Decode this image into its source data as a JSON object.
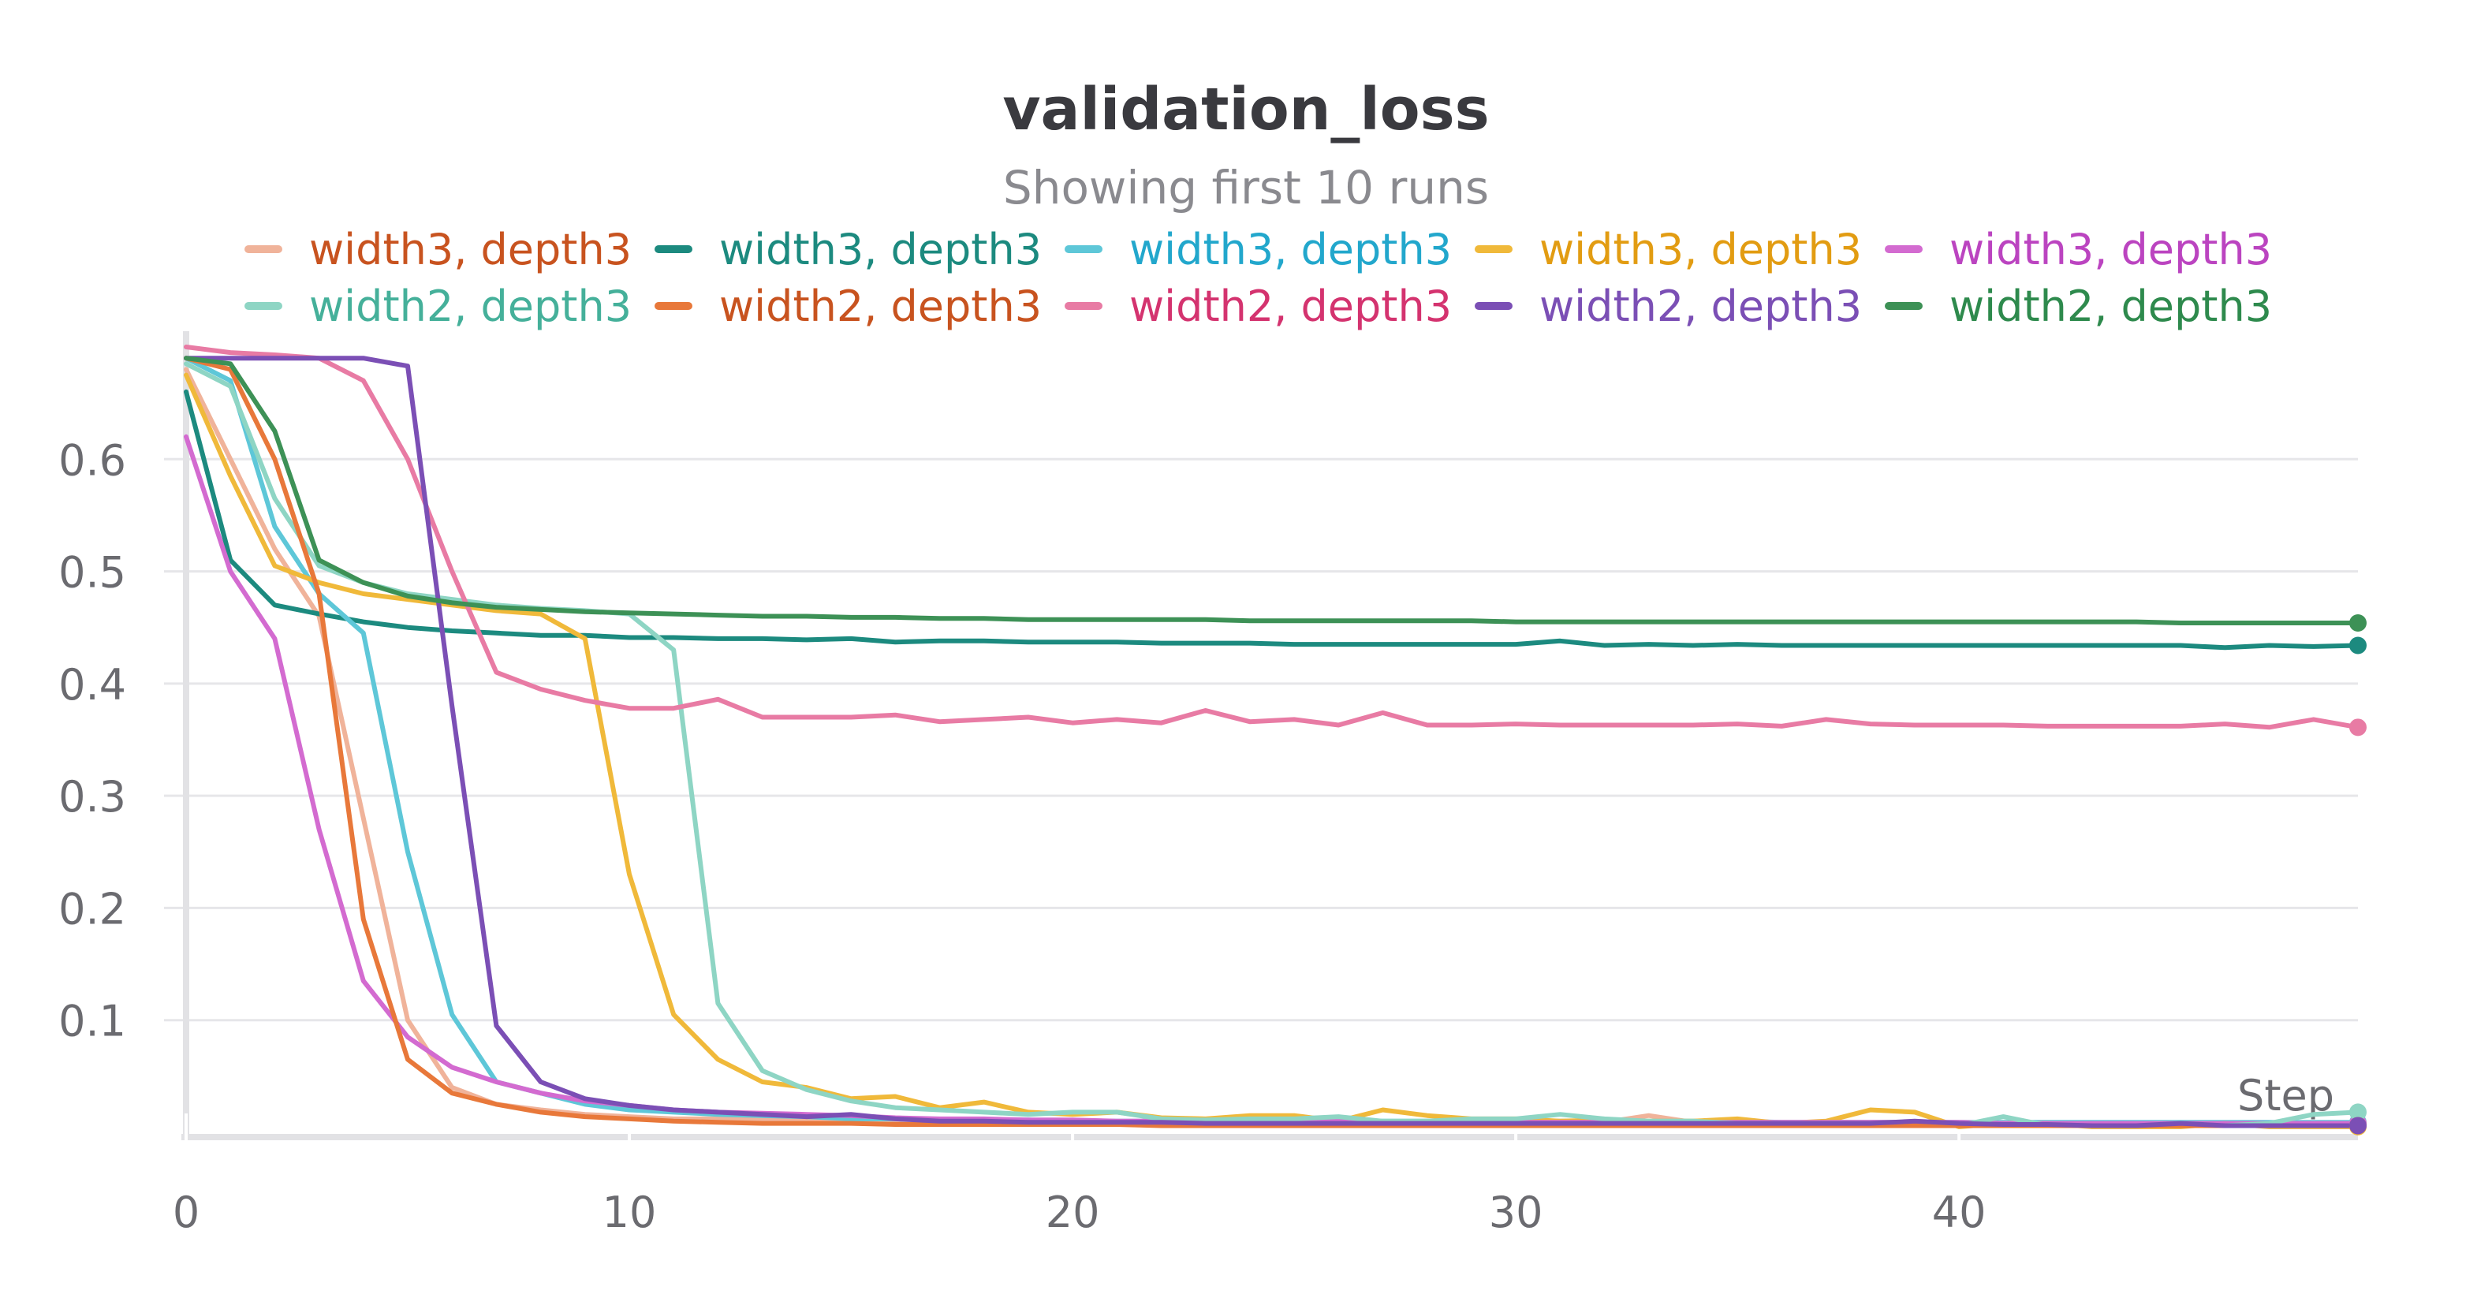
{
  "chart_data": {
    "type": "line",
    "title": "validation_loss",
    "subtitle": "Showing first 10 runs",
    "xlabel": "Step",
    "ylabel": "",
    "xlim": [
      0,
      49
    ],
    "ylim": [
      0,
      0.7
    ],
    "x_ticks": [
      0,
      10,
      20,
      30,
      40
    ],
    "y_ticks": [
      0.1,
      0.2,
      0.3,
      0.4,
      0.5,
      0.6
    ],
    "grid": true,
    "legend_position": "top",
    "x": [
      0,
      1,
      2,
      3,
      4,
      5,
      6,
      7,
      8,
      9,
      10,
      11,
      12,
      13,
      14,
      15,
      16,
      17,
      18,
      19,
      20,
      21,
      22,
      23,
      24,
      25,
      26,
      27,
      28,
      29,
      30,
      31,
      32,
      33,
      34,
      35,
      36,
      37,
      38,
      39,
      40,
      41,
      42,
      43,
      44,
      45,
      46,
      47,
      48,
      49
    ],
    "series": [
      {
        "name": "width3, depth3",
        "color": "#f0b39a",
        "label_color": "#c8531f",
        "values": [
          0.68,
          0.6,
          0.52,
          0.46,
          0.28,
          0.1,
          0.04,
          0.025,
          0.02,
          0.016,
          0.014,
          0.012,
          0.012,
          0.011,
          0.011,
          0.01,
          0.01,
          0.01,
          0.01,
          0.01,
          0.01,
          0.009,
          0.009,
          0.009,
          0.009,
          0.012,
          0.009,
          0.009,
          0.009,
          0.009,
          0.009,
          0.009,
          0.009,
          0.015,
          0.009,
          0.009,
          0.009,
          0.009,
          0.009,
          0.009,
          0.008,
          0.008,
          0.008,
          0.008,
          0.008,
          0.008,
          0.008,
          0.008,
          0.008,
          0.008
        ]
      },
      {
        "name": "width3, depth3",
        "color": "#1c8a7f",
        "label_color": "#1c8a7f",
        "values": [
          0.66,
          0.51,
          0.47,
          0.462,
          0.455,
          0.45,
          0.447,
          0.445,
          0.443,
          0.443,
          0.441,
          0.441,
          0.44,
          0.44,
          0.439,
          0.44,
          0.437,
          0.438,
          0.438,
          0.437,
          0.437,
          0.437,
          0.436,
          0.436,
          0.436,
          0.435,
          0.435,
          0.435,
          0.435,
          0.435,
          0.435,
          0.438,
          0.434,
          0.435,
          0.434,
          0.435,
          0.434,
          0.434,
          0.434,
          0.434,
          0.434,
          0.434,
          0.434,
          0.434,
          0.434,
          0.434,
          0.432,
          0.434,
          0.433,
          0.434
        ]
      },
      {
        "name": "width3, depth3",
        "color": "#5ec7d8",
        "label_color": "#22a7cc",
        "values": [
          0.69,
          0.67,
          0.54,
          0.48,
          0.445,
          0.25,
          0.105,
          0.045,
          0.035,
          0.025,
          0.02,
          0.018,
          0.016,
          0.015,
          0.014,
          0.012,
          0.012,
          0.011,
          0.011,
          0.011,
          0.01,
          0.01,
          0.01,
          0.01,
          0.01,
          0.01,
          0.01,
          0.01,
          0.01,
          0.01,
          0.01,
          0.01,
          0.01,
          0.01,
          0.01,
          0.01,
          0.009,
          0.009,
          0.009,
          0.009,
          0.009,
          0.009,
          0.009,
          0.009,
          0.009,
          0.009,
          0.009,
          0.009,
          0.009,
          0.009
        ]
      },
      {
        "name": "width3, depth3",
        "color": "#f0b93a",
        "label_color": "#e29c12",
        "values": [
          0.675,
          0.585,
          0.505,
          0.49,
          0.48,
          0.475,
          0.47,
          0.465,
          0.462,
          0.44,
          0.23,
          0.105,
          0.065,
          0.045,
          0.04,
          0.03,
          0.032,
          0.022,
          0.027,
          0.018,
          0.016,
          0.018,
          0.013,
          0.012,
          0.015,
          0.015,
          0.01,
          0.02,
          0.015,
          0.012,
          0.012,
          0.01,
          0.011,
          0.01,
          0.01,
          0.012,
          0.008,
          0.01,
          0.02,
          0.018,
          0.005,
          0.008,
          0.008,
          0.005,
          0.005,
          0.005,
          0.008,
          0.005,
          0.005,
          0.005
        ]
      },
      {
        "name": "width3, depth3",
        "color": "#d36bd0",
        "label_color": "#bb44c0",
        "values": [
          0.62,
          0.5,
          0.44,
          0.27,
          0.135,
          0.085,
          0.058,
          0.045,
          0.035,
          0.028,
          0.024,
          0.02,
          0.018,
          0.017,
          0.016,
          0.015,
          0.013,
          0.012,
          0.012,
          0.011,
          0.011,
          0.01,
          0.01,
          0.01,
          0.01,
          0.01,
          0.01,
          0.009,
          0.009,
          0.009,
          0.009,
          0.009,
          0.009,
          0.009,
          0.009,
          0.009,
          0.009,
          0.009,
          0.009,
          0.009,
          0.009,
          0.008,
          0.008,
          0.008,
          0.008,
          0.008,
          0.008,
          0.008,
          0.008,
          0.008
        ]
      },
      {
        "name": "width2, depth3",
        "color": "#8ed5c4",
        "label_color": "#45b09a",
        "values": [
          0.685,
          0.665,
          0.565,
          0.505,
          0.49,
          0.48,
          0.475,
          0.47,
          0.467,
          0.465,
          0.462,
          0.43,
          0.115,
          0.055,
          0.038,
          0.028,
          0.022,
          0.02,
          0.018,
          0.016,
          0.018,
          0.018,
          0.012,
          0.011,
          0.012,
          0.012,
          0.014,
          0.01,
          0.01,
          0.012,
          0.012,
          0.016,
          0.012,
          0.01,
          0.01,
          0.008,
          0.008,
          0.008,
          0.008,
          0.006,
          0.006,
          0.014,
          0.006,
          0.006,
          0.006,
          0.006,
          0.006,
          0.008,
          0.016,
          0.018
        ]
      },
      {
        "name": "width2, depth3",
        "color": "#e8783a",
        "label_color": "#c8531f",
        "values": [
          0.69,
          0.68,
          0.6,
          0.48,
          0.19,
          0.065,
          0.035,
          0.025,
          0.018,
          0.014,
          0.012,
          0.01,
          0.009,
          0.008,
          0.008,
          0.008,
          0.007,
          0.007,
          0.007,
          0.007,
          0.007,
          0.007,
          0.006,
          0.006,
          0.006,
          0.006,
          0.006,
          0.006,
          0.006,
          0.006,
          0.006,
          0.006,
          0.006,
          0.006,
          0.006,
          0.006,
          0.006,
          0.006,
          0.006,
          0.006,
          0.006,
          0.006,
          0.006,
          0.006,
          0.006,
          0.006,
          0.006,
          0.006,
          0.006,
          0.006
        ]
      },
      {
        "name": "width2, depth3",
        "color": "#e87ba4",
        "label_color": "#d4336f",
        "values": [
          0.7,
          0.695,
          0.693,
          0.69,
          0.67,
          0.6,
          0.5,
          0.41,
          0.395,
          0.385,
          0.378,
          0.378,
          0.386,
          0.37,
          0.37,
          0.37,
          0.372,
          0.366,
          0.368,
          0.37,
          0.365,
          0.368,
          0.365,
          0.376,
          0.366,
          0.368,
          0.363,
          0.374,
          0.363,
          0.363,
          0.364,
          0.363,
          0.363,
          0.363,
          0.363,
          0.364,
          0.362,
          0.368,
          0.364,
          0.363,
          0.363,
          0.363,
          0.362,
          0.362,
          0.362,
          0.362,
          0.364,
          0.361,
          0.368,
          0.361
        ]
      },
      {
        "name": "width2, depth3",
        "color": "#7b4fb5",
        "label_color": "#7b4fb5",
        "values": [
          0.69,
          0.69,
          0.69,
          0.69,
          0.69,
          0.683,
          0.38,
          0.095,
          0.045,
          0.03,
          0.024,
          0.02,
          0.018,
          0.016,
          0.014,
          0.016,
          0.012,
          0.01,
          0.01,
          0.009,
          0.009,
          0.009,
          0.009,
          0.008,
          0.008,
          0.008,
          0.008,
          0.008,
          0.008,
          0.008,
          0.008,
          0.008,
          0.008,
          0.008,
          0.008,
          0.008,
          0.008,
          0.008,
          0.008,
          0.01,
          0.008,
          0.007,
          0.007,
          0.006,
          0.006,
          0.008,
          0.006,
          0.006,
          0.006,
          0.006
        ]
      },
      {
        "name": "width2, depth3",
        "color": "#3d9156",
        "label_color": "#2e8a4d",
        "values": [
          0.69,
          0.685,
          0.625,
          0.51,
          0.49,
          0.478,
          0.472,
          0.468,
          0.466,
          0.464,
          0.463,
          0.462,
          0.461,
          0.46,
          0.46,
          0.459,
          0.459,
          0.458,
          0.458,
          0.457,
          0.457,
          0.457,
          0.457,
          0.457,
          0.456,
          0.456,
          0.456,
          0.456,
          0.456,
          0.456,
          0.455,
          0.455,
          0.455,
          0.455,
          0.455,
          0.455,
          0.455,
          0.455,
          0.455,
          0.455,
          0.455,
          0.455,
          0.455,
          0.455,
          0.455,
          0.454,
          0.454,
          0.454,
          0.454,
          0.454
        ]
      }
    ]
  }
}
